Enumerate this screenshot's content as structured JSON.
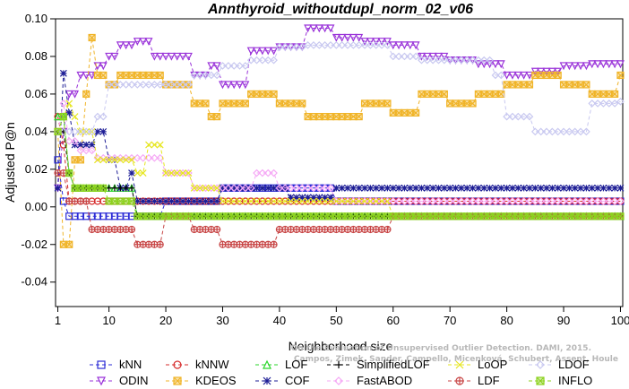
{
  "chart_data": {
    "type": "line",
    "title": "Annthyroid_withoutdupl_norm_02_v06",
    "xlabel": "Neighborhood size",
    "ylabel": "Adjusted P@n",
    "xlim": [
      0,
      100
    ],
    "ylim": [
      -0.05,
      0.1
    ],
    "x_ticks": [
      "1",
      "10",
      "20",
      "30",
      "40",
      "50",
      "60",
      "70",
      "80",
      "90",
      "100"
    ],
    "x_tick_values": [
      1,
      10,
      20,
      30,
      40,
      50,
      60,
      70,
      80,
      90,
      100
    ],
    "y_ticks": [
      "-0.04",
      "-0.02",
      "0.00",
      "0.02",
      "0.04",
      "0.06",
      "0.08",
      "0.10"
    ],
    "y_tick_values": [
      -0.04,
      -0.02,
      0.0,
      0.02,
      0.04,
      0.06,
      0.08,
      0.1
    ],
    "grid": false,
    "legend_position": "bottom",
    "credit": "Campos, Zimek, Sander, Campello, Micenková, Schubert, Assent, Houle",
    "credit_line1": "On the Evaluation of Unsupervised Outlier Detection. DAMI, 2015.",
    "series": [
      {
        "name": "kNN",
        "color": "#2b2bd6",
        "marker": "square",
        "dash": "4,3",
        "x": [
          1,
          2,
          3,
          4,
          5,
          6,
          7,
          8,
          9,
          10,
          15,
          20,
          30,
          40,
          50,
          60,
          70,
          80,
          90,
          100
        ],
        "y": [
          0.025,
          0.003,
          -0.005,
          -0.005,
          -0.005,
          -0.005,
          -0.005,
          -0.005,
          -0.005,
          -0.005,
          -0.005,
          0.003,
          0.01,
          0.01,
          0.003,
          0.003,
          0.003,
          0.003,
          0.003,
          0.003
        ]
      },
      {
        "name": "ODIN",
        "color": "#9a33d9",
        "marker": "triangle-down",
        "dash": "4,3",
        "x": [
          1,
          2,
          3,
          5,
          8,
          10,
          12,
          15,
          18,
          20,
          25,
          28,
          30,
          35,
          40,
          45,
          50,
          55,
          60,
          65,
          70,
          75,
          80,
          85,
          90,
          95,
          100
        ],
        "y": [
          0.01,
          0.04,
          0.06,
          0.07,
          0.075,
          0.08,
          0.086,
          0.088,
          0.08,
          0.08,
          0.07,
          0.075,
          0.065,
          0.083,
          0.085,
          0.095,
          0.09,
          0.088,
          0.086,
          0.08,
          0.078,
          0.076,
          0.07,
          0.072,
          0.075,
          0.076,
          0.076
        ]
      },
      {
        "name": "kNNW",
        "color": "#d62b2b",
        "marker": "circle",
        "dash": "4,3",
        "x": [
          1,
          2,
          3,
          4,
          5,
          7,
          10,
          15,
          20,
          30,
          40,
          50,
          60,
          70,
          80,
          90,
          100
        ],
        "y": [
          0.048,
          0.033,
          0.003,
          0.003,
          0.003,
          0.003,
          0.003,
          0.003,
          0.003,
          0.003,
          0.003,
          0.003,
          0.003,
          0.003,
          0.003,
          0.003,
          0.003
        ]
      },
      {
        "name": "KDEOS",
        "color": "#f0b428",
        "marker": "square-x",
        "dash": "4,3",
        "x": [
          1,
          2,
          4,
          6,
          7,
          8,
          10,
          12,
          15,
          20,
          25,
          28,
          30,
          35,
          40,
          45,
          50,
          55,
          60,
          65,
          70,
          75,
          80,
          85,
          90,
          95,
          100
        ],
        "y": [
          0.04,
          -0.02,
          0.025,
          0.06,
          0.09,
          0.07,
          0.065,
          0.07,
          0.07,
          0.065,
          0.055,
          0.048,
          0.055,
          0.06,
          0.055,
          0.048,
          0.048,
          0.055,
          0.05,
          0.06,
          0.055,
          0.06,
          0.065,
          0.07,
          0.065,
          0.06,
          0.07
        ]
      },
      {
        "name": "LOF",
        "color": "#2bd62b",
        "marker": "triangle-up",
        "dash": "4,3",
        "x": [
          1,
          2,
          3,
          4,
          5,
          8,
          10,
          15,
          20,
          30,
          40,
          50,
          60,
          70,
          80,
          90,
          100
        ],
        "y": [
          0.048,
          0.048,
          0.018,
          0.01,
          0.01,
          0.01,
          0.01,
          -0.005,
          -0.005,
          -0.005,
          -0.005,
          -0.005,
          -0.005,
          -0.005,
          -0.005,
          -0.005,
          -0.005
        ]
      },
      {
        "name": "COF",
        "color": "#1e1e96",
        "marker": "asterisk",
        "dash": "4,3",
        "x": [
          1,
          2,
          3,
          4,
          6,
          8,
          10,
          12,
          14,
          15,
          20,
          30,
          40,
          42,
          50,
          60,
          70,
          80,
          90,
          100
        ],
        "y": [
          0.01,
          0.071,
          0.05,
          0.033,
          0.033,
          0.04,
          0.025,
          0.01,
          0.018,
          0.003,
          0.003,
          0.01,
          0.01,
          0.005,
          0.01,
          0.01,
          0.01,
          0.01,
          0.01,
          0.01
        ]
      },
      {
        "name": "SimplifiedLOF",
        "color": "#000000",
        "marker": "plus",
        "dash": "4,3",
        "x": [
          1,
          2,
          3,
          4,
          5,
          7,
          10,
          15,
          20,
          30,
          40,
          50,
          60,
          70,
          80,
          90,
          100
        ],
        "y": [
          0.04,
          0.04,
          0.018,
          0.01,
          0.01,
          0.01,
          0.01,
          -0.005,
          -0.005,
          -0.005,
          -0.005,
          -0.005,
          -0.005,
          -0.005,
          -0.005,
          -0.005,
          -0.005
        ]
      },
      {
        "name": "FastABOD",
        "color": "#f5a8f5",
        "marker": "diamond",
        "dash": "4,3",
        "x": [
          1,
          2,
          3,
          5,
          8,
          10,
          15,
          20,
          25,
          30,
          36,
          40,
          50,
          60,
          70,
          80,
          90,
          100
        ],
        "y": [
          0.04,
          0.055,
          0.035,
          0.03,
          0.026,
          0.026,
          0.026,
          0.018,
          0.01,
          0.01,
          0.018,
          0.01,
          0.003,
          0.003,
          0.003,
          0.003,
          0.003,
          0.003
        ]
      },
      {
        "name": "LoOP",
        "color": "#e6e61e",
        "marker": "cross",
        "dash": "4,3",
        "x": [
          1,
          2,
          3,
          4,
          5,
          8,
          10,
          15,
          17,
          20,
          25,
          30,
          40,
          50,
          60,
          70,
          80,
          90,
          100
        ],
        "y": [
          0.04,
          0.048,
          0.055,
          0.048,
          0.04,
          0.025,
          0.025,
          0.018,
          0.033,
          0.018,
          0.01,
          0.003,
          0.003,
          0.003,
          -0.005,
          -0.005,
          -0.005,
          -0.005,
          -0.005
        ]
      },
      {
        "name": "LDF",
        "color": "#c84646",
        "marker": "circle-plus",
        "dash": "4,3",
        "x": [
          1,
          3,
          5,
          7,
          10,
          13,
          15,
          20,
          25,
          30,
          35,
          40,
          45,
          50,
          55,
          56,
          60,
          70,
          80,
          90,
          100
        ],
        "y": [
          0.018,
          0.003,
          0.003,
          -0.012,
          -0.012,
          -0.012,
          -0.02,
          -0.005,
          -0.012,
          -0.02,
          -0.02,
          -0.012,
          -0.012,
          -0.012,
          -0.012,
          -0.012,
          -0.005,
          -0.005,
          -0.005,
          -0.005,
          -0.005
        ]
      },
      {
        "name": "LDOF",
        "color": "#c8c8f0",
        "marker": "diamond",
        "dash": "4,3",
        "x": [
          1,
          3,
          5,
          8,
          10,
          15,
          20,
          25,
          30,
          35,
          40,
          45,
          50,
          55,
          60,
          65,
          70,
          75,
          78,
          80,
          85,
          90,
          95,
          100
        ],
        "y": [
          0.04,
          0.04,
          0.04,
          0.048,
          0.065,
          0.065,
          0.065,
          0.07,
          0.075,
          0.078,
          0.085,
          0.086,
          0.086,
          0.086,
          0.08,
          0.078,
          0.078,
          0.078,
          0.07,
          0.048,
          0.04,
          0.04,
          0.055,
          0.056
        ]
      },
      {
        "name": "INFLO",
        "color": "#8cd21e",
        "marker": "square-x",
        "dash": "4,3",
        "x": [
          1,
          2,
          3,
          4,
          5,
          8,
          10,
          15,
          20,
          30,
          40,
          50,
          60,
          70,
          80,
          90,
          100
        ],
        "y": [
          0.04,
          0.048,
          0.018,
          0.01,
          0.01,
          0.01,
          0.003,
          -0.005,
          -0.005,
          -0.005,
          -0.005,
          -0.005,
          -0.005,
          -0.005,
          -0.005,
          -0.005,
          -0.005
        ]
      }
    ]
  }
}
